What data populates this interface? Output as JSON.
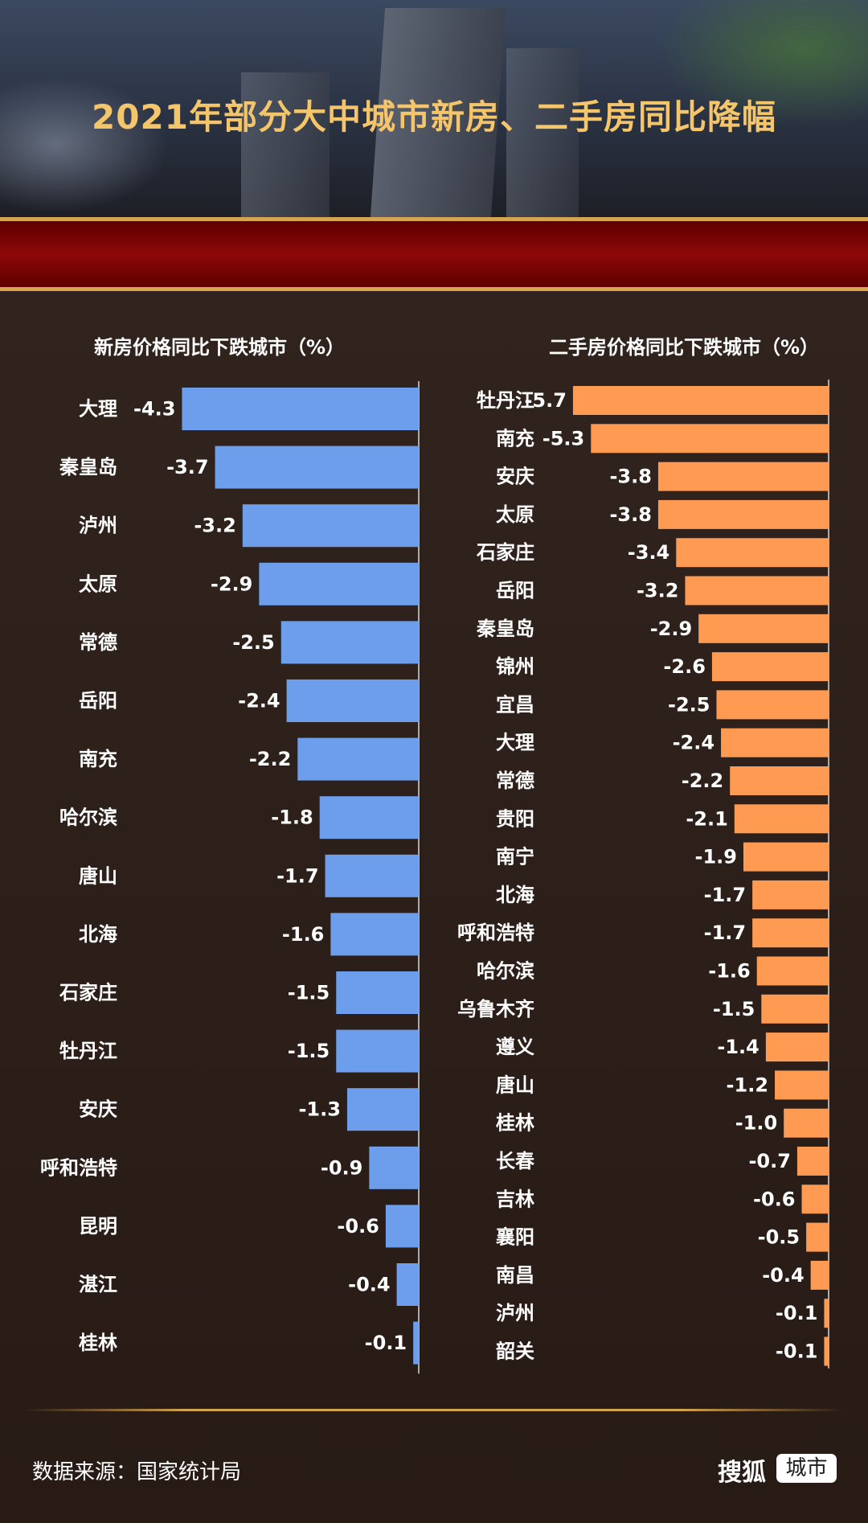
{
  "title": "2021年部分大中城市新房、二手房同比降幅",
  "source": "数据来源：国家统计局",
  "brand": {
    "name": "搜狐",
    "tag": "城市"
  },
  "colors": {
    "new_bar": "#6d9eeb",
    "second_bar": "#ff9a52",
    "title": "#f4c56a"
  },
  "chart_data": [
    {
      "type": "bar",
      "orientation": "horizontal",
      "title": "新房价格同比下跌城市（%）",
      "categories": [
        "大理",
        "秦皇岛",
        "泸州",
        "太原",
        "常德",
        "岳阳",
        "南充",
        "哈尔滨",
        "唐山",
        "北海",
        "石家庄",
        "牡丹江",
        "安庆",
        "呼和浩特",
        "昆明",
        "湛江",
        "桂林"
      ],
      "values": [
        -4.3,
        -3.7,
        -3.2,
        -2.9,
        -2.5,
        -2.4,
        -2.2,
        -1.8,
        -1.7,
        -1.6,
        -1.5,
        -1.5,
        -1.3,
        -0.9,
        -0.6,
        -0.4,
        -0.1
      ],
      "labels": [
        "-4.3",
        "-3.7",
        "-3.2",
        "-2.9",
        "-2.5",
        "-2.4",
        "-2.2",
        "-1.8",
        "-1.7",
        "-1.6",
        "-1.5",
        "-1.5",
        "-1.3",
        "-0.9",
        "-0.6",
        "-0.4",
        "-0.1"
      ]
    },
    {
      "type": "bar",
      "orientation": "horizontal",
      "title": "二手房价格同比下跌城市（%）",
      "categories": [
        "牡丹江",
        "南充",
        "安庆",
        "太原",
        "石家庄",
        "岳阳",
        "秦皇岛",
        "锦州",
        "宜昌",
        "大理",
        "常德",
        "贵阳",
        "南宁",
        "北海",
        "呼和浩特",
        "哈尔滨",
        "乌鲁木齐",
        "遵义",
        "唐山",
        "桂林",
        "长春",
        "吉林",
        "襄阳",
        "南昌",
        "泸州",
        "韶关"
      ],
      "values": [
        -5.7,
        -5.3,
        -3.8,
        -3.8,
        -3.4,
        -3.2,
        -2.9,
        -2.6,
        -2.5,
        -2.4,
        -2.2,
        -2.1,
        -1.9,
        -1.7,
        -1.7,
        -1.6,
        -1.5,
        -1.4,
        -1.2,
        -1.0,
        -0.7,
        -0.6,
        -0.5,
        -0.4,
        -0.1,
        -0.1
      ],
      "labels": [
        "-5.7",
        "-5.3",
        "-3.8",
        "-3.8",
        "-3.4",
        "-3.2",
        "-2.9",
        "-2.6",
        "-2.5",
        "-2.4",
        "-2.2",
        "-2.1",
        "-1.9",
        "-1.7",
        "-1.7",
        "-1.6",
        "-1.5",
        "-1.4",
        "-1.2",
        "-1.0",
        "-0.7",
        "-0.6",
        "-0.5",
        "-0.4",
        "-0.1",
        "-0.1"
      ]
    }
  ]
}
